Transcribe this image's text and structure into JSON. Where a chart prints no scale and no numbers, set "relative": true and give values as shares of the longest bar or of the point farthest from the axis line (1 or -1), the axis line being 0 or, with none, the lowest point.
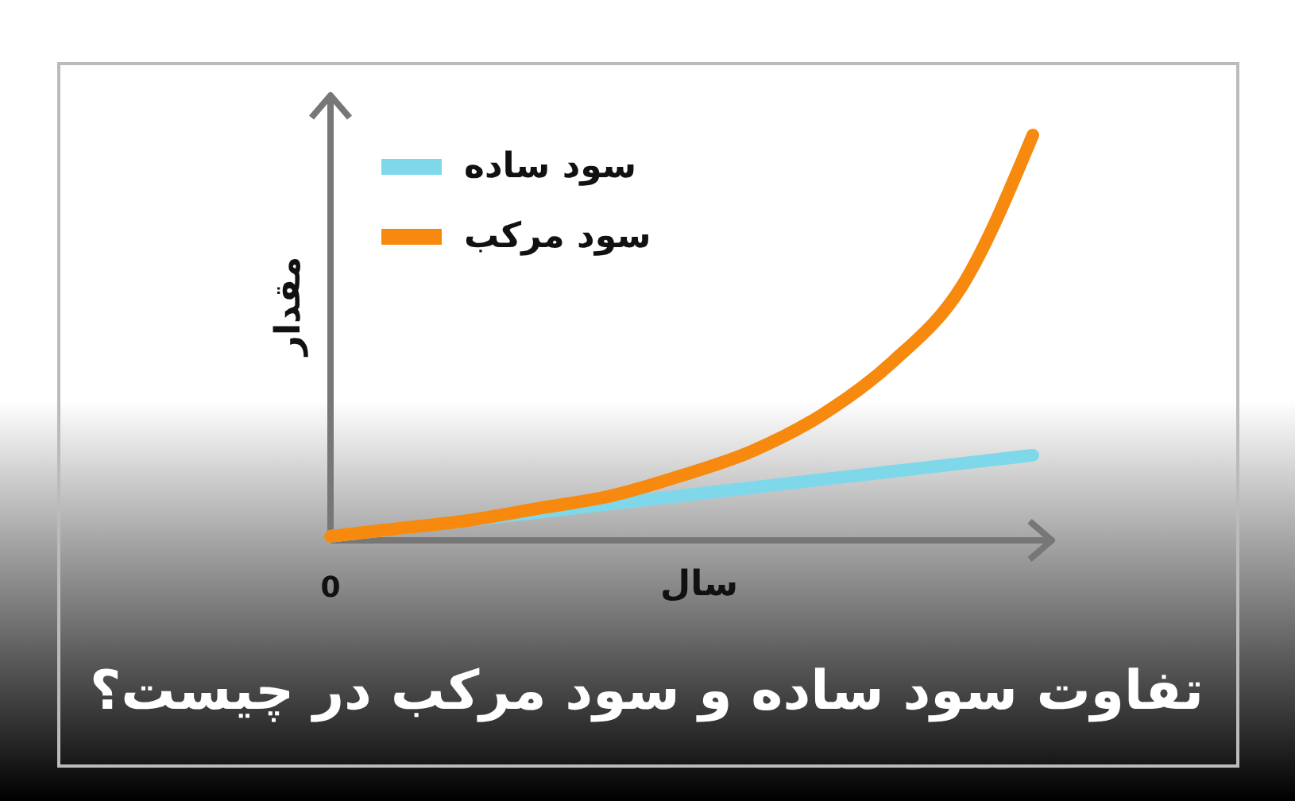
{
  "chart_data": {
    "type": "line",
    "title": "تفاوت سود ساده و سود مرکب در چیست؟",
    "xlabel": "سال",
    "ylabel": "مقدار",
    "annotations": [
      "0"
    ],
    "relative": true,
    "legend": "top left",
    "grid": false,
    "marker": "none",
    "line_style": "solid",
    "categories": [
      null,
      null,
      null,
      null,
      null,
      null,
      null,
      null,
      null,
      null,
      null
    ],
    "series": [
      {
        "name": "سود ساده",
        "color": "#7fd8ea",
        "values": [
          0.01,
          0.03,
          0.05,
          0.07,
          0.09,
          0.11,
          0.13,
          0.15,
          0.17,
          0.19,
          0.21
        ]
      },
      {
        "name": "سود مرکب",
        "color": "#f7890f",
        "values": [
          0.01,
          0.03,
          0.05,
          0.08,
          0.11,
          0.16,
          0.22,
          0.31,
          0.44,
          0.63,
          1
        ]
      }
    ]
  }
}
